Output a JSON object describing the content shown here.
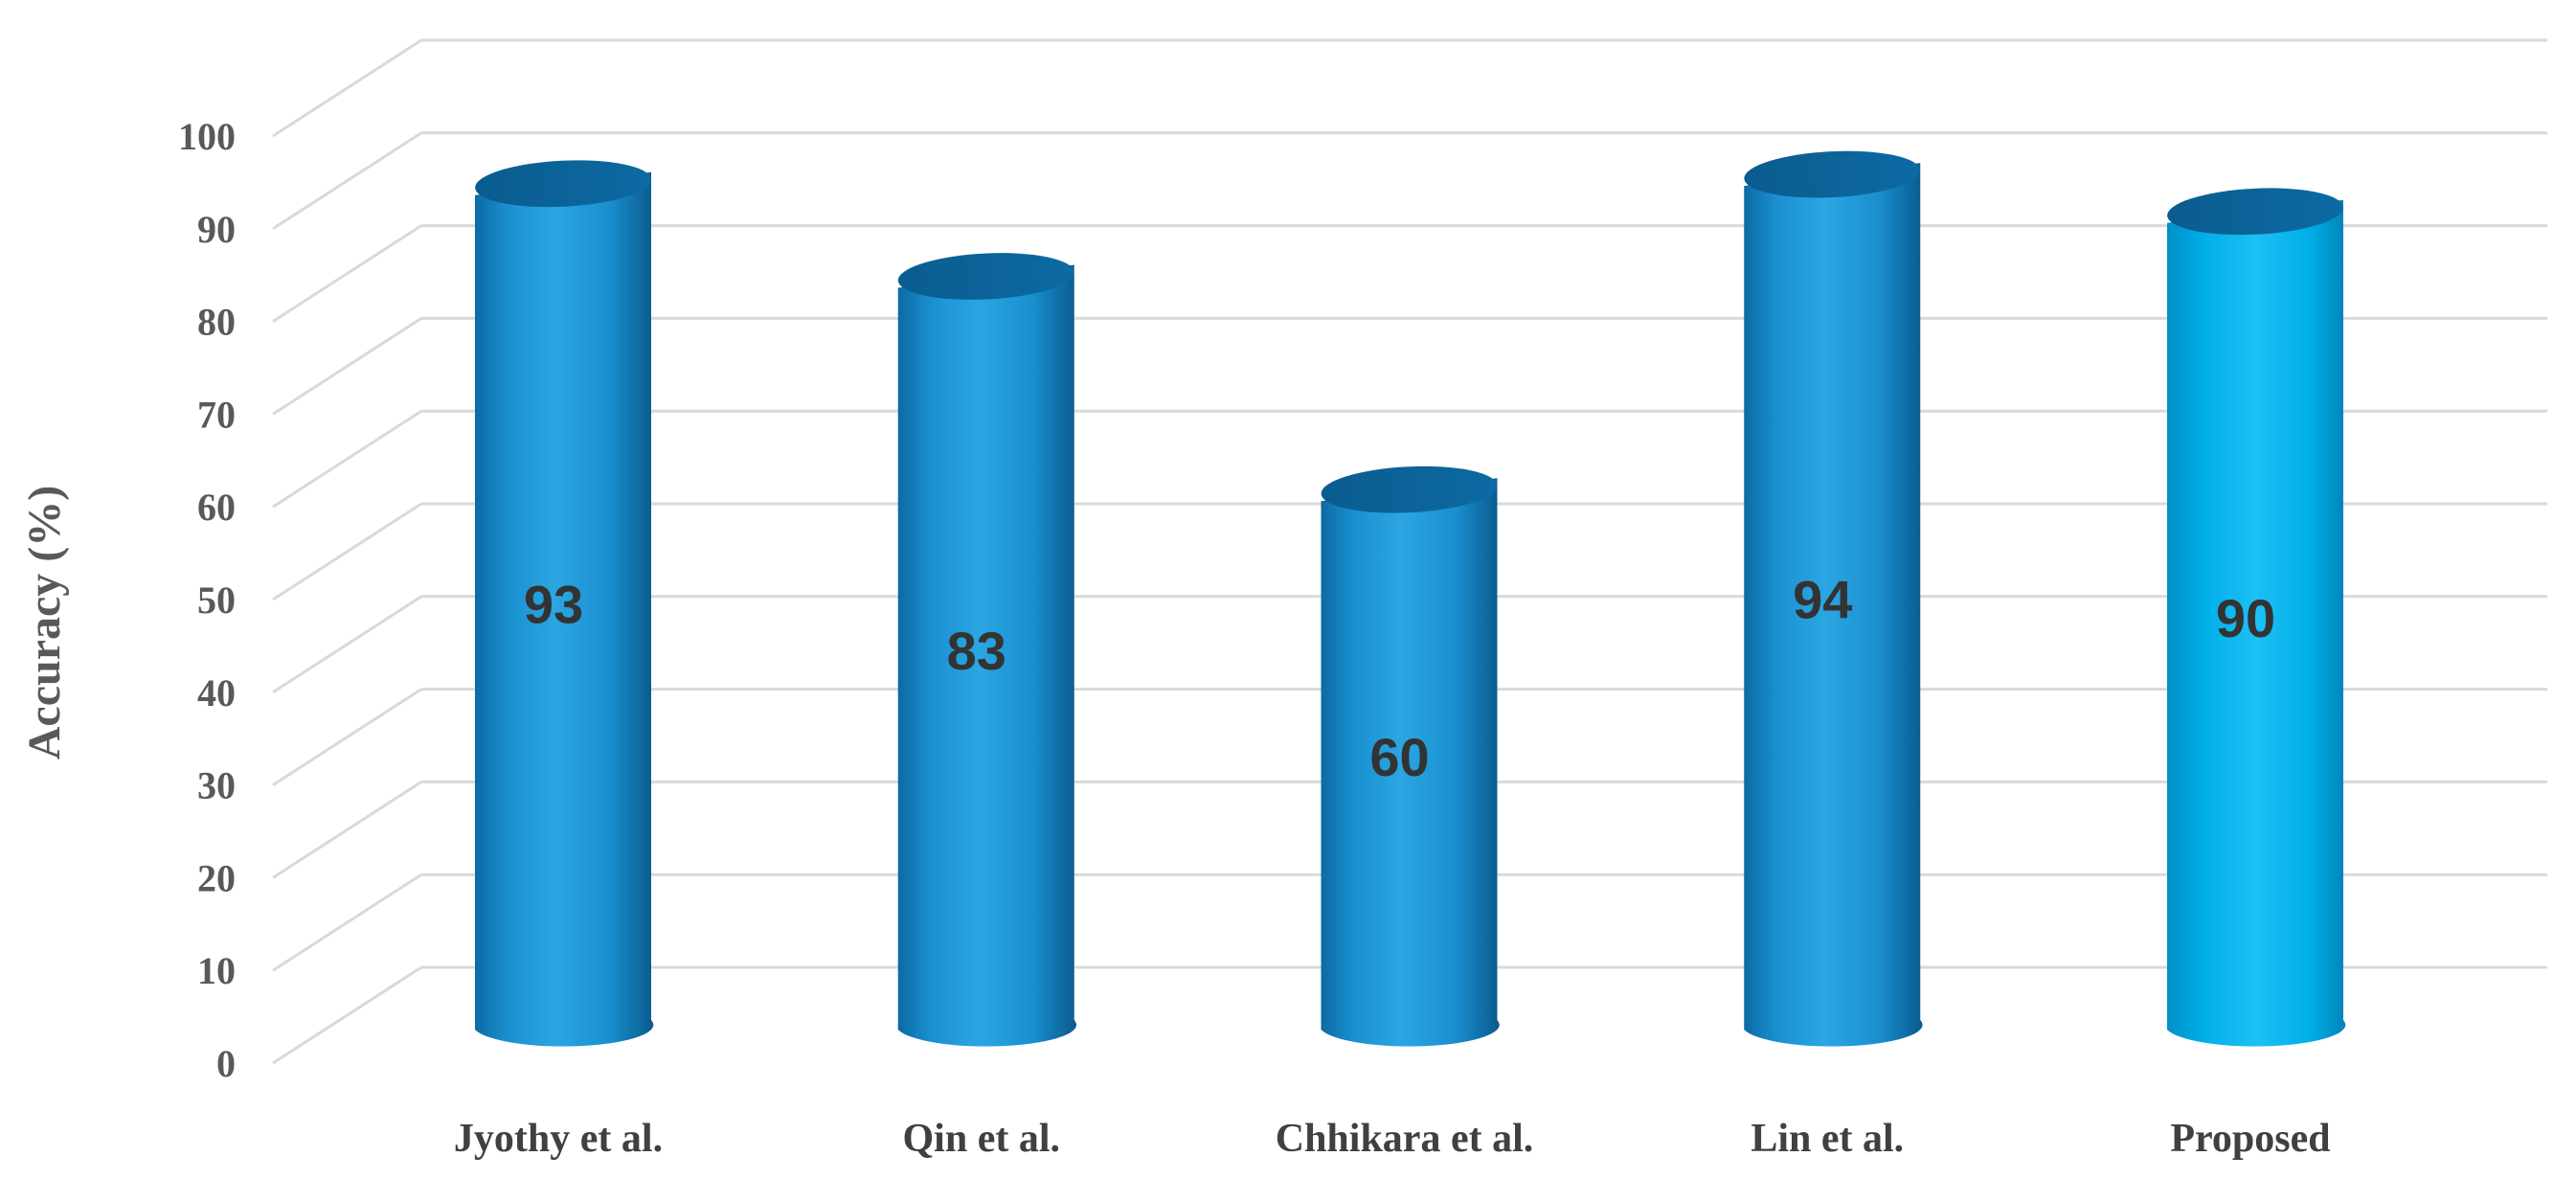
{
  "chart_data": {
    "type": "bar",
    "style": "3d-cylinder",
    "categories": [
      "Jyothy et al.",
      "Qin et al.",
      "Chhikara et al.",
      "Lin et al.",
      "Proposed"
    ],
    "series": [
      {
        "values": [
          93,
          83,
          60,
          94,
          90
        ]
      }
    ],
    "data_labels": [
      "93",
      "83",
      "60",
      "94",
      "90"
    ],
    "yticks": [
      "0",
      "10",
      "20",
      "30",
      "40",
      "50",
      "60",
      "70",
      "80",
      "90",
      "100"
    ],
    "ylabel": "Accuracy (%)",
    "xlabel": "",
    "title": "",
    "ylim": [
      0,
      100
    ],
    "grid": true,
    "legend": "none",
    "colors": {
      "bar": "#1b97d6",
      "bar_dark": "#0b5f93",
      "bar_light": "#3fb2ea",
      "highlight_bar": "#00b4f0",
      "grid": "#d9d9d9"
    }
  }
}
